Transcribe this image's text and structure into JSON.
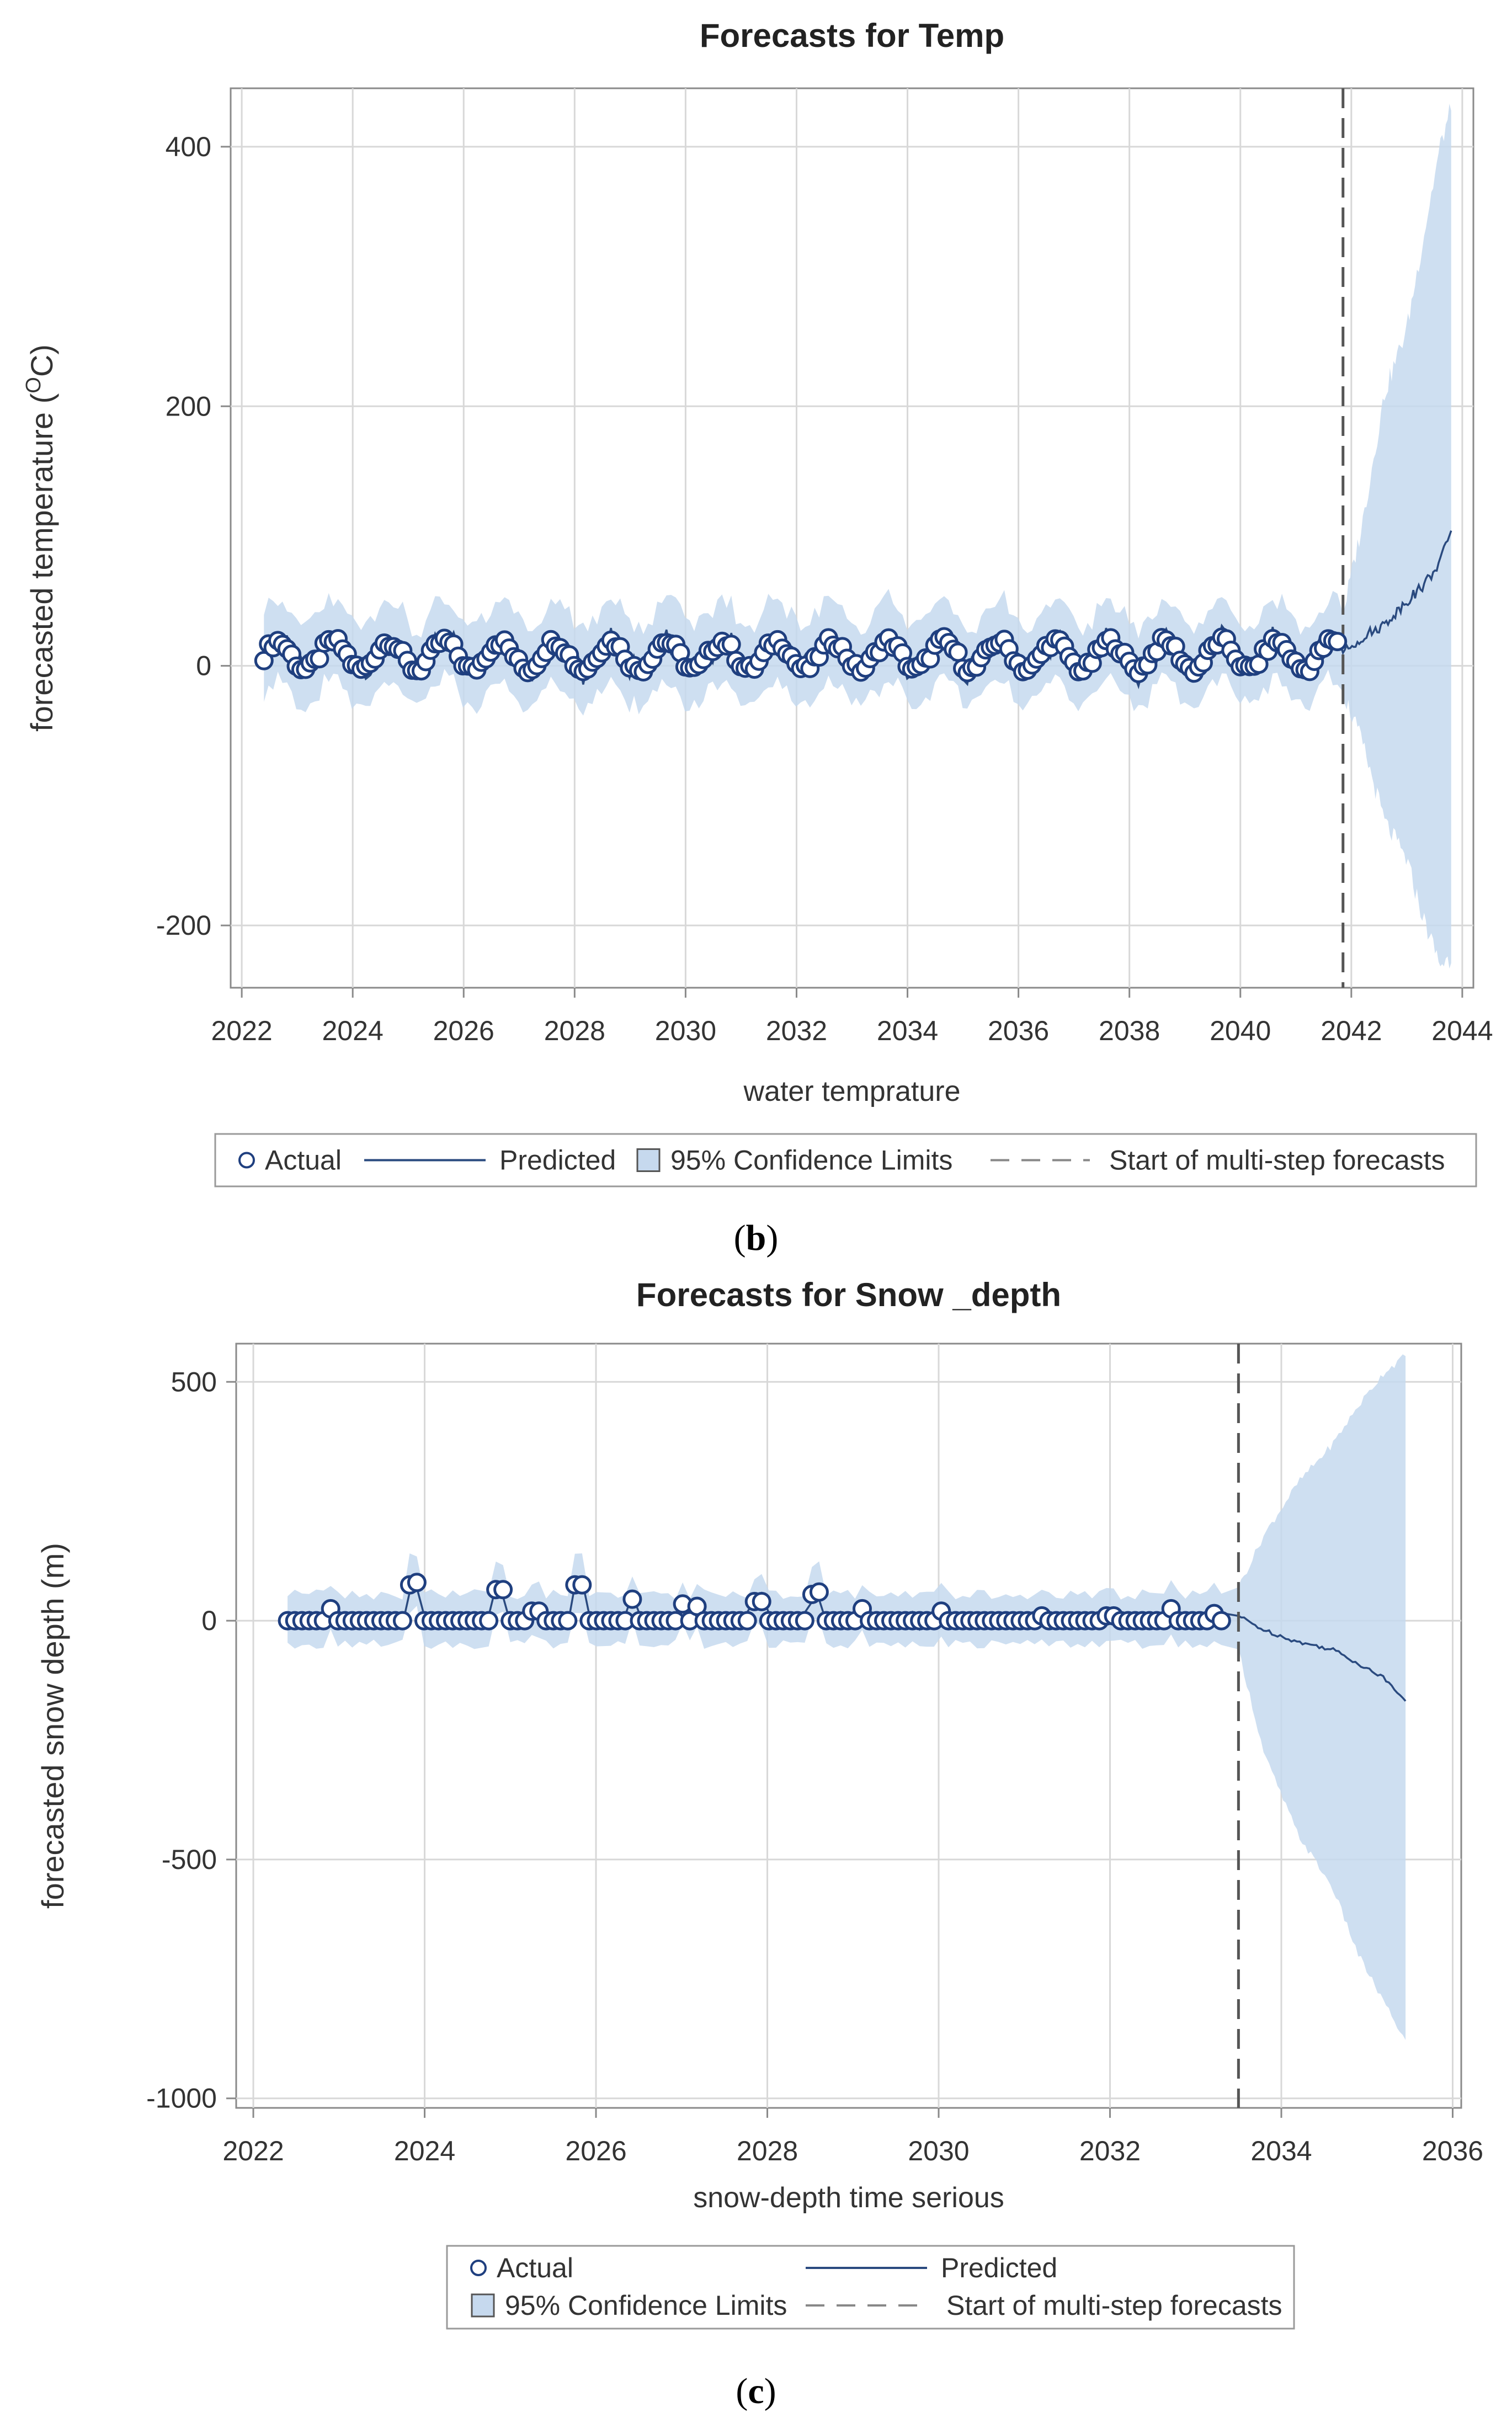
{
  "chart_data": [
    {
      "type": "line",
      "panel_caption": "b",
      "title": "Forecasts for Temp",
      "xlabel": "water temprature",
      "ylabel_prefix": "forecasted temperature (",
      "ylabel_sup": "O",
      "ylabel_suffix": "C)",
      "xlim": [
        2021.8,
        2044.2
      ],
      "ylim": [
        -248,
        445
      ],
      "x_ticks": [
        2022,
        2024,
        2026,
        2028,
        2030,
        2032,
        2034,
        2036,
        2038,
        2040,
        2042,
        2044
      ],
      "y_ticks": [
        -200,
        0,
        200,
        400
      ],
      "x_tick_labels": [
        "2022",
        "2024",
        "2026",
        "2028",
        "2030",
        "2032",
        "2034",
        "2036",
        "2038",
        "2040",
        "2042",
        "2044"
      ],
      "y_tick_labels": [
        "-200",
        "0",
        "200",
        "400"
      ],
      "forecast_start": 2041.85,
      "actual": {
        "start": 2022.4,
        "end": 2041.75,
        "count": 233,
        "mean": 8,
        "amplitude": 11,
        "cycle_years": 1
      },
      "predicted_forecast": {
        "x": [
          2041.85,
          2042.2,
          2042.6,
          2043.0,
          2043.3,
          2043.6,
          2043.8
        ],
        "y": [
          10,
          22,
          32,
          50,
          62,
          80,
          105
        ]
      },
      "confidence_forecast": {
        "x": [
          2041.85,
          2042.2,
          2042.6,
          2043.0,
          2043.3,
          2043.6,
          2043.8
        ],
        "upper": [
          40,
          110,
          210,
          260,
          330,
          400,
          430
        ],
        "lower": [
          -20,
          -60,
          -120,
          -150,
          -195,
          -230,
          -225
        ]
      },
      "confidence_history_halfwidth": 32,
      "legend": {
        "actual": "Actual",
        "predicted": "Predicted",
        "confidence": "95% Confidence Limits",
        "forecast_start": "Start of multi-step forecasts"
      }
    },
    {
      "type": "line",
      "panel_caption": "c",
      "title": "Forecasts for Snow _depth",
      "xlabel": "snow-depth time serious",
      "ylabel": "forecasted snow depth (m)",
      "xlim": [
        2021.8,
        2036.1
      ],
      "ylim": [
        -1020,
        580
      ],
      "x_ticks": [
        2022,
        2024,
        2026,
        2028,
        2030,
        2032,
        2034,
        2036
      ],
      "y_ticks": [
        -1000,
        -500,
        0,
        500
      ],
      "x_tick_labels": [
        "2022",
        "2024",
        "2026",
        "2028",
        "2030",
        "2032",
        "2034",
        "2036"
      ],
      "y_tick_labels": [
        "-1000",
        "-500",
        "0",
        "500"
      ],
      "forecast_start": 2033.5,
      "actual": {
        "start": 2022.4,
        "end": 2033.3,
        "count": 131,
        "baseline": 0,
        "peaks": [
          [
            2022.9,
            25
          ],
          [
            2023.8,
            75
          ],
          [
            2023.9,
            80
          ],
          [
            2024.8,
            65
          ],
          [
            2024.9,
            65
          ],
          [
            2025.3,
            20
          ],
          [
            2025.8,
            75
          ],
          [
            2026.4,
            45
          ],
          [
            2027.0,
            35
          ],
          [
            2027.2,
            30
          ],
          [
            2027.9,
            40
          ],
          [
            2028.5,
            55
          ],
          [
            2028.6,
            60
          ],
          [
            2029.1,
            25
          ],
          [
            2030.0,
            20
          ],
          [
            2031.2,
            10
          ],
          [
            2032.0,
            10
          ],
          [
            2032.7,
            25
          ],
          [
            2033.2,
            15
          ]
        ]
      },
      "predicted_forecast": {
        "x": [
          2033.5,
          2033.8,
          2034.2,
          2034.6,
          2034.9,
          2035.2,
          2035.45
        ],
        "y": [
          10,
          -20,
          -45,
          -60,
          -90,
          -120,
          -165
        ]
      },
      "confidence_forecast": {
        "x": [
          2033.5,
          2033.8,
          2034.2,
          2034.6,
          2034.9,
          2035.2,
          2035.45
        ],
        "upper": [
          70,
          180,
          290,
          370,
          450,
          520,
          555
        ],
        "lower": [
          -60,
          -280,
          -450,
          -560,
          -700,
          -800,
          -880
        ]
      },
      "confidence_history_halfwidth": 55,
      "legend": {
        "actual": "Actual",
        "predicted": "Predicted",
        "confidence": "95% Confidence Limits",
        "forecast_start": "Start of multi-step forecasts"
      }
    }
  ],
  "colors": {
    "actual_stroke": "#1f3f7f",
    "predicted": "#2a4a7f",
    "band": "#c6d9ee",
    "grid": "#d8d8d8",
    "axis": "#8a8a8a",
    "forecast_line": "#555555"
  }
}
